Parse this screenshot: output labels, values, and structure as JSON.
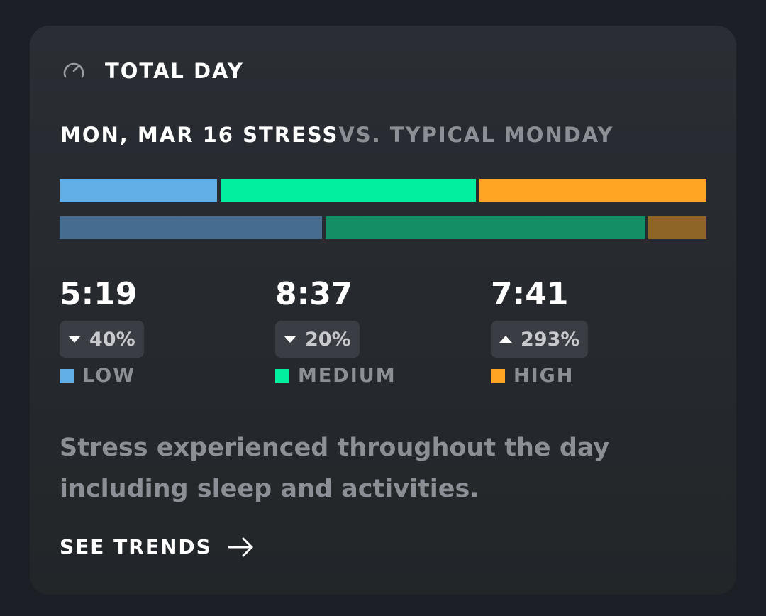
{
  "header": {
    "title": "TOTAL DAY",
    "icon": "gauge-icon"
  },
  "subtitle": {
    "date_label": "MON, MAR 16 STRESS",
    "comparison_label": "VS. TYPICAL MONDAY"
  },
  "chart_data": {
    "type": "bar",
    "categories": [
      "LOW",
      "MEDIUM",
      "HIGH"
    ],
    "series": [
      {
        "values": [
          5.32,
          8.62,
          7.68
        ]
      },
      {
        "values": [
          8.87,
          10.78,
          1.95
        ]
      }
    ],
    "stacked": true,
    "orientation": "horizontal"
  },
  "stats": [
    {
      "value": "5:19",
      "change": "40%",
      "direction": "down",
      "label": "LOW",
      "color": "#62aee6"
    },
    {
      "value": "8:37",
      "change": "20%",
      "direction": "down",
      "label": "MEDIUM",
      "color": "#00f0a0"
    },
    {
      "value": "7:41",
      "change": "293%",
      "direction": "up",
      "label": "HIGH",
      "color": "#ffa523"
    }
  ],
  "colors": {
    "current": [
      "#62aee6",
      "#00f0a0",
      "#ffa523"
    ],
    "typical": [
      "#466d8f",
      "#138f66",
      "#8f6427"
    ]
  },
  "description": "Stress experienced throughout the day including sleep and activities.",
  "cta": {
    "label": "SEE TRENDS",
    "icon": "arrow-right-icon"
  }
}
